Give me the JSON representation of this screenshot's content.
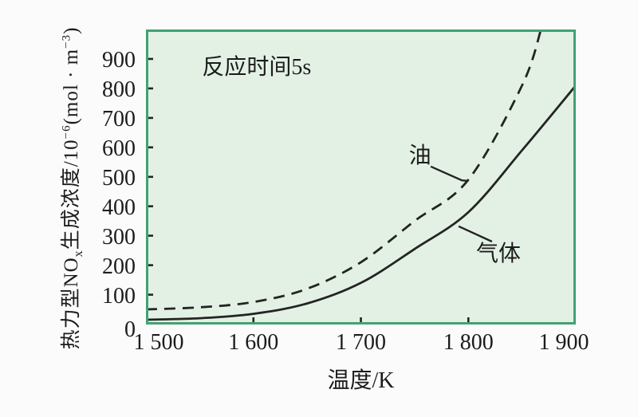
{
  "page": {
    "background": "#fbfbfb",
    "text_color": "#1c1c1c"
  },
  "axes": {
    "y": {
      "title_full": "热力型NOx生成浓度/10^-6(mol·m^-3)",
      "title_p1": "热力型NO",
      "title_sub": "x",
      "title_p2": "生成浓度/10",
      "title_sup1": "−6",
      "title_p3": "(mol · m",
      "title_sup2": "−3",
      "title_p4": ")"
    },
    "x": {
      "title": "温度/K"
    }
  },
  "chart_data": {
    "type": "line",
    "xlabel": "温度/K",
    "ylabel": "热力型NOx生成浓度/10^-6(mol·m^-3)",
    "xlim": [
      1500,
      1900
    ],
    "ylim": [
      0,
      1000
    ],
    "grid": false,
    "legend": "inline curve annotations with leader lines",
    "x_ticks": [
      {
        "t": 1500,
        "label": "1 500",
        "mark": false,
        "dx": 16
      },
      {
        "t": 1600,
        "label": "1 600",
        "mark": true,
        "dx": 0
      },
      {
        "t": 1700,
        "label": "1 700",
        "mark": true,
        "dx": 0
      },
      {
        "t": 1800,
        "label": "1 800",
        "mark": true,
        "dx": 0
      },
      {
        "t": 1900,
        "label": "1 900",
        "mark": false,
        "dx": -15
      }
    ],
    "y_ticks": [
      {
        "v": 0,
        "label": "0",
        "mark": false,
        "dy": 7
      },
      {
        "v": 100,
        "label": "100",
        "mark": true,
        "dy": 2
      },
      {
        "v": 200,
        "label": "200",
        "mark": true,
        "dy": 2
      },
      {
        "v": 300,
        "label": "300",
        "mark": true,
        "dy": 2
      },
      {
        "v": 400,
        "label": "400",
        "mark": true,
        "dy": 2
      },
      {
        "v": 500,
        "label": "500",
        "mark": true,
        "dy": 2
      },
      {
        "v": 600,
        "label": "600",
        "mark": true,
        "dy": 2
      },
      {
        "v": 700,
        "label": "700",
        "mark": true,
        "dy": 2
      },
      {
        "v": 800,
        "label": "800",
        "mark": true,
        "dy": 2
      },
      {
        "v": 900,
        "label": "900",
        "mark": true,
        "dy": 2
      }
    ],
    "series": [
      {
        "name": "气体",
        "style": "solid",
        "x": [
          1500,
          1550,
          1600,
          1650,
          1700,
          1750,
          1800,
          1850,
          1900
        ],
        "values": [
          15,
          20,
          35,
          70,
          140,
          255,
          380,
          590,
          810
        ]
      },
      {
        "name": "油",
        "style": "dashed",
        "x": [
          1500,
          1550,
          1600,
          1650,
          1700,
          1750,
          1800,
          1850,
          1868
        ],
        "values": [
          50,
          57,
          75,
          120,
          210,
          350,
          490,
          810,
          1005
        ]
      }
    ],
    "annotations": [
      {
        "name": "annotation-reaction-time",
        "text": "反应时间5s",
        "label_at": {
          "t": 1603,
          "v": 878
        },
        "pointer": []
      },
      {
        "name": "series-label-oil",
        "text": "油",
        "label_at": {
          "t": 1755,
          "v": 578
        },
        "pointer": [
          {
            "t": 1765,
            "v": 535
          },
          {
            "t": 1794,
            "v": 488
          },
          {
            "t": 1800,
            "v": 486
          }
        ]
      },
      {
        "name": "series-label-gas",
        "text": "气体",
        "label_at": {
          "t": 1828,
          "v": 245
        },
        "pointer": [
          {
            "t": 1791,
            "v": 332
          },
          {
            "t": 1822,
            "v": 280
          }
        ]
      }
    ],
    "colors": {
      "page_bg": "#fbfbfb",
      "plot_bg": "#e3f1e5",
      "plot_border": "#43a173",
      "curve": "#242424",
      "tick": "#242424",
      "text": "#1c1c1c"
    }
  }
}
